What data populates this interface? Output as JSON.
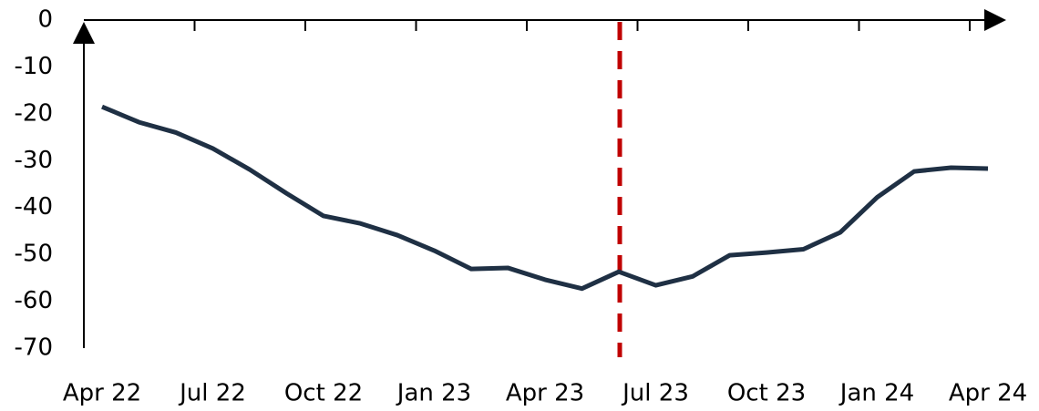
{
  "chart_data": {
    "type": "line",
    "categories": [
      "Apr 22",
      null,
      null,
      "Jul 22",
      null,
      null,
      "Oct 22",
      null,
      null,
      "Jan 23",
      null,
      null,
      "Apr 23",
      null,
      null,
      "Jul 23",
      null,
      null,
      "Oct 23",
      null,
      null,
      "Jan 24",
      null,
      null,
      "Apr 24"
    ],
    "series": [
      {
        "color": "#1f3044",
        "values": [
          -18.5,
          -21.8,
          -24,
          -27.4,
          -31.9,
          -37,
          -41.8,
          -43.4,
          -45.9,
          -49.2,
          -53.1,
          -52.9,
          -55.4,
          -57.3,
          -53.7,
          -56.6,
          -54.7,
          -50.2,
          -49.6,
          -48.9,
          -45.3,
          -37.8,
          -32.3,
          -31.5,
          -31.7
        ]
      }
    ],
    "ylim": [
      -70,
      0
    ],
    "yticks": [
      0,
      -10,
      -20,
      -30,
      -40,
      -50,
      -60,
      -70
    ],
    "grid": false
  }
}
